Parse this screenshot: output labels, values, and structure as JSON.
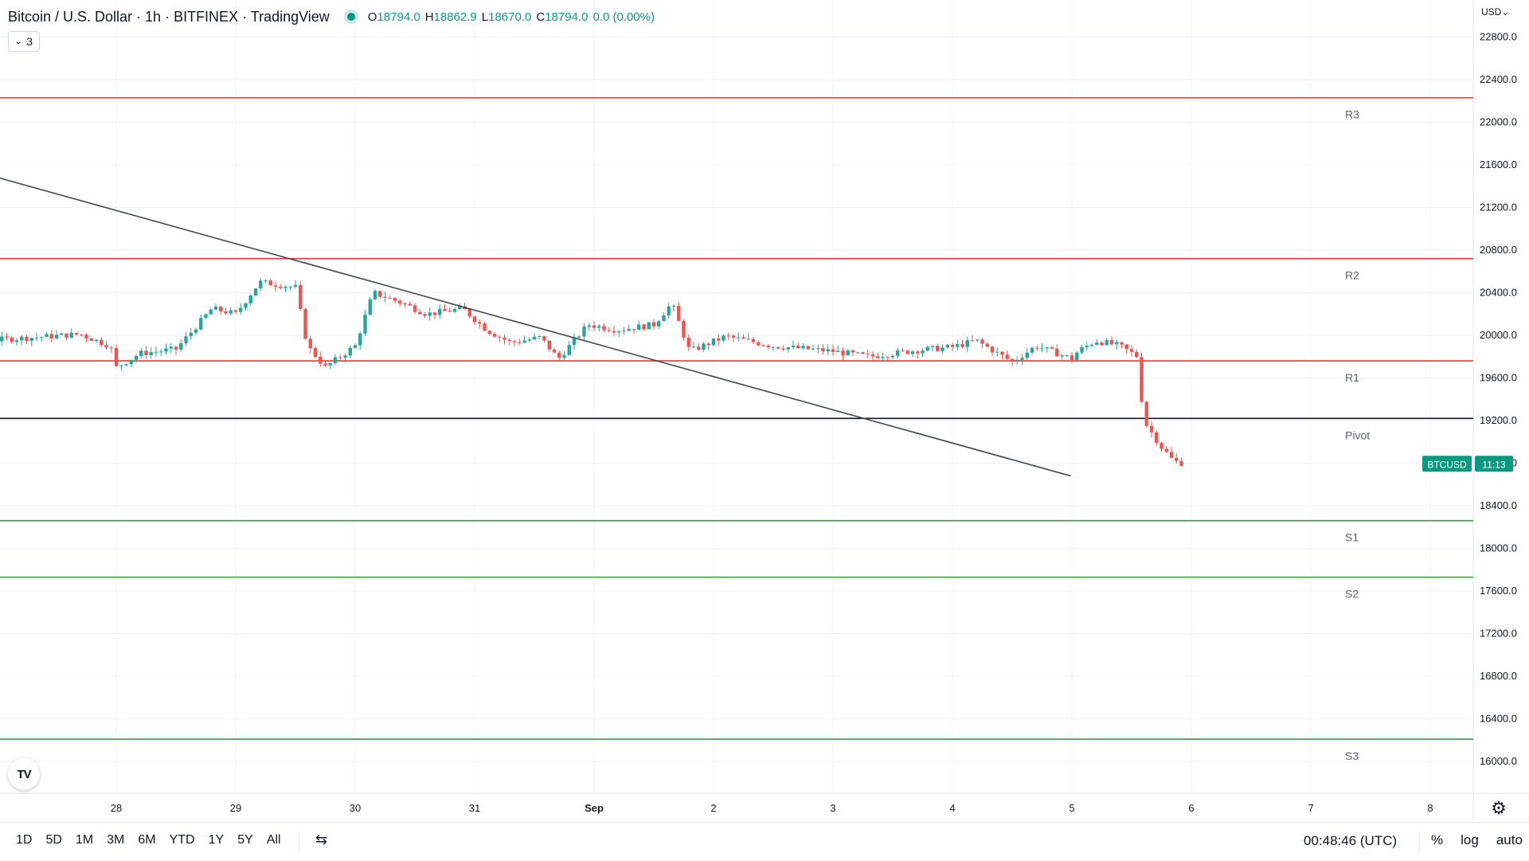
{
  "header": {
    "title": "Bitcoin / U.S. Dollar · 1h · BITFINEX · TradingView",
    "ohlc": [
      {
        "k": "O",
        "v": "18794.0"
      },
      {
        "k": "H",
        "v": "18862.9"
      },
      {
        "k": "L",
        "v": "18670.0"
      },
      {
        "k": "C",
        "v": "18794.0"
      },
      {
        "k": "",
        "v": "0.0 (0.00%)"
      }
    ],
    "indicators_count": "3"
  },
  "currency": "USD",
  "chart_data": {
    "type": "candlestick",
    "title": "Bitcoin / U.S. Dollar · 1h · BITFINEX · TradingView",
    "ylim": [
      15700,
      23100
    ],
    "y_ticks": [
      16000,
      16400,
      16800,
      17200,
      17600,
      18000,
      18400,
      18800,
      19200,
      19600,
      20000,
      20400,
      20800,
      21200,
      21600,
      22000,
      22400,
      22800
    ],
    "x_ticks": [
      "28",
      "29",
      "30",
      "31",
      "Sep",
      "2",
      "3",
      "4",
      "5",
      "6",
      "7",
      "8"
    ],
    "levels": [
      {
        "name": "R3",
        "value": 22230,
        "color": "#e53935"
      },
      {
        "name": "R2",
        "value": 20720,
        "color": "#e53935"
      },
      {
        "name": "R1",
        "value": 19760,
        "color": "#e53935"
      },
      {
        "name": "Pivot",
        "value": 19220,
        "color": "#131722"
      },
      {
        "name": "S1",
        "value": 18260,
        "color": "#2ea043"
      },
      {
        "name": "S2",
        "value": 17730,
        "color": "#2ea043"
      },
      {
        "name": "S3",
        "value": 16210,
        "color": "#2ea043"
      }
    ],
    "trendline": {
      "from": {
        "day": 27.05,
        "price": 21780
      },
      "to": {
        "day": 36.99,
        "price": 18680
      }
    },
    "price_label": {
      "symbol": "BTCUSD",
      "countdown": "11:13",
      "value": 18794
    }
  },
  "bottom": {
    "ranges": [
      "1D",
      "5D",
      "1M",
      "3M",
      "6M",
      "YTD",
      "1Y",
      "5Y",
      "All"
    ],
    "clock": "00:48:46 (UTC)",
    "percent": "%",
    "log": "log",
    "auto": "auto"
  }
}
